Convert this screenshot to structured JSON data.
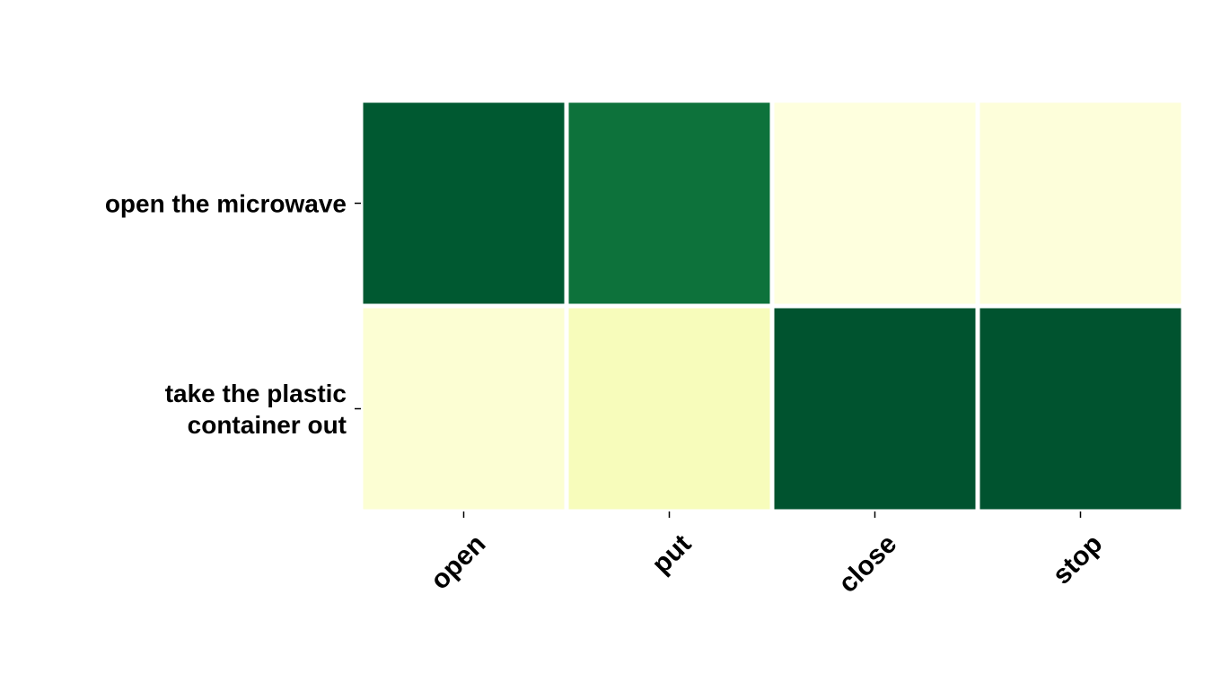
{
  "chart_data": {
    "type": "heatmap",
    "title": "",
    "xlabel": "",
    "ylabel": "",
    "x_categories": [
      "open",
      "put",
      "close",
      "stop"
    ],
    "y_categories": [
      "open the microwave",
      "take the plastic container out"
    ],
    "values": [
      [
        0.93,
        0.83,
        0.02,
        0.03
      ],
      [
        0.05,
        0.12,
        0.95,
        0.95
      ]
    ],
    "colormap": "YlGn",
    "colorbar": false,
    "grid": false
  }
}
